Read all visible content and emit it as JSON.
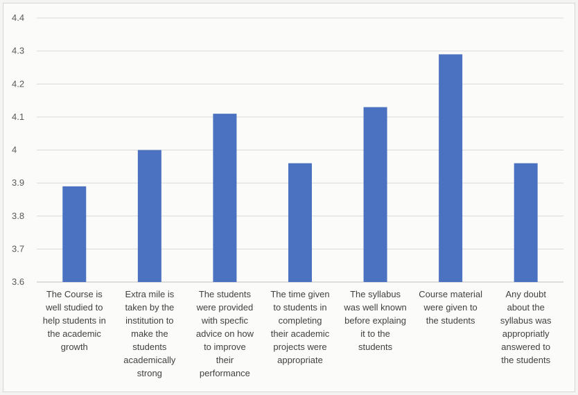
{
  "chart_data": {
    "type": "bar",
    "categories": [
      [
        "The Course is",
        "well studied to",
        "help students in",
        "the academic",
        "growth"
      ],
      [
        "Extra mile is",
        "taken by the",
        "institution to",
        "make the",
        "students",
        "academically",
        "strong"
      ],
      [
        "The students",
        "were provided",
        "with specfic",
        "advice on how",
        "to improve",
        "their",
        "performance"
      ],
      [
        "The time given",
        "to students in",
        "completing",
        "their academic",
        "projects were",
        "appropriate"
      ],
      [
        "The syllabus",
        "was well known",
        "before explaing",
        "it to the",
        "students"
      ],
      [
        "Course material",
        "were given to",
        "the students"
      ],
      [
        "Any doubt",
        "about the",
        "syllabus was",
        "appropriatly",
        "answered to",
        "the students"
      ]
    ],
    "values": [
      3.89,
      4.0,
      4.11,
      3.96,
      4.13,
      4.29,
      3.96
    ],
    "ylim": [
      3.6,
      4.4
    ],
    "yticks": [
      "3.6",
      "3.7",
      "3.8",
      "3.9",
      "4",
      "4.1",
      "4.2",
      "4.3",
      "4.4"
    ],
    "grid": true,
    "colors": {
      "bar": "#4a72c0",
      "grid": "#d9d9d9",
      "axis": "#bfbfbf"
    }
  }
}
